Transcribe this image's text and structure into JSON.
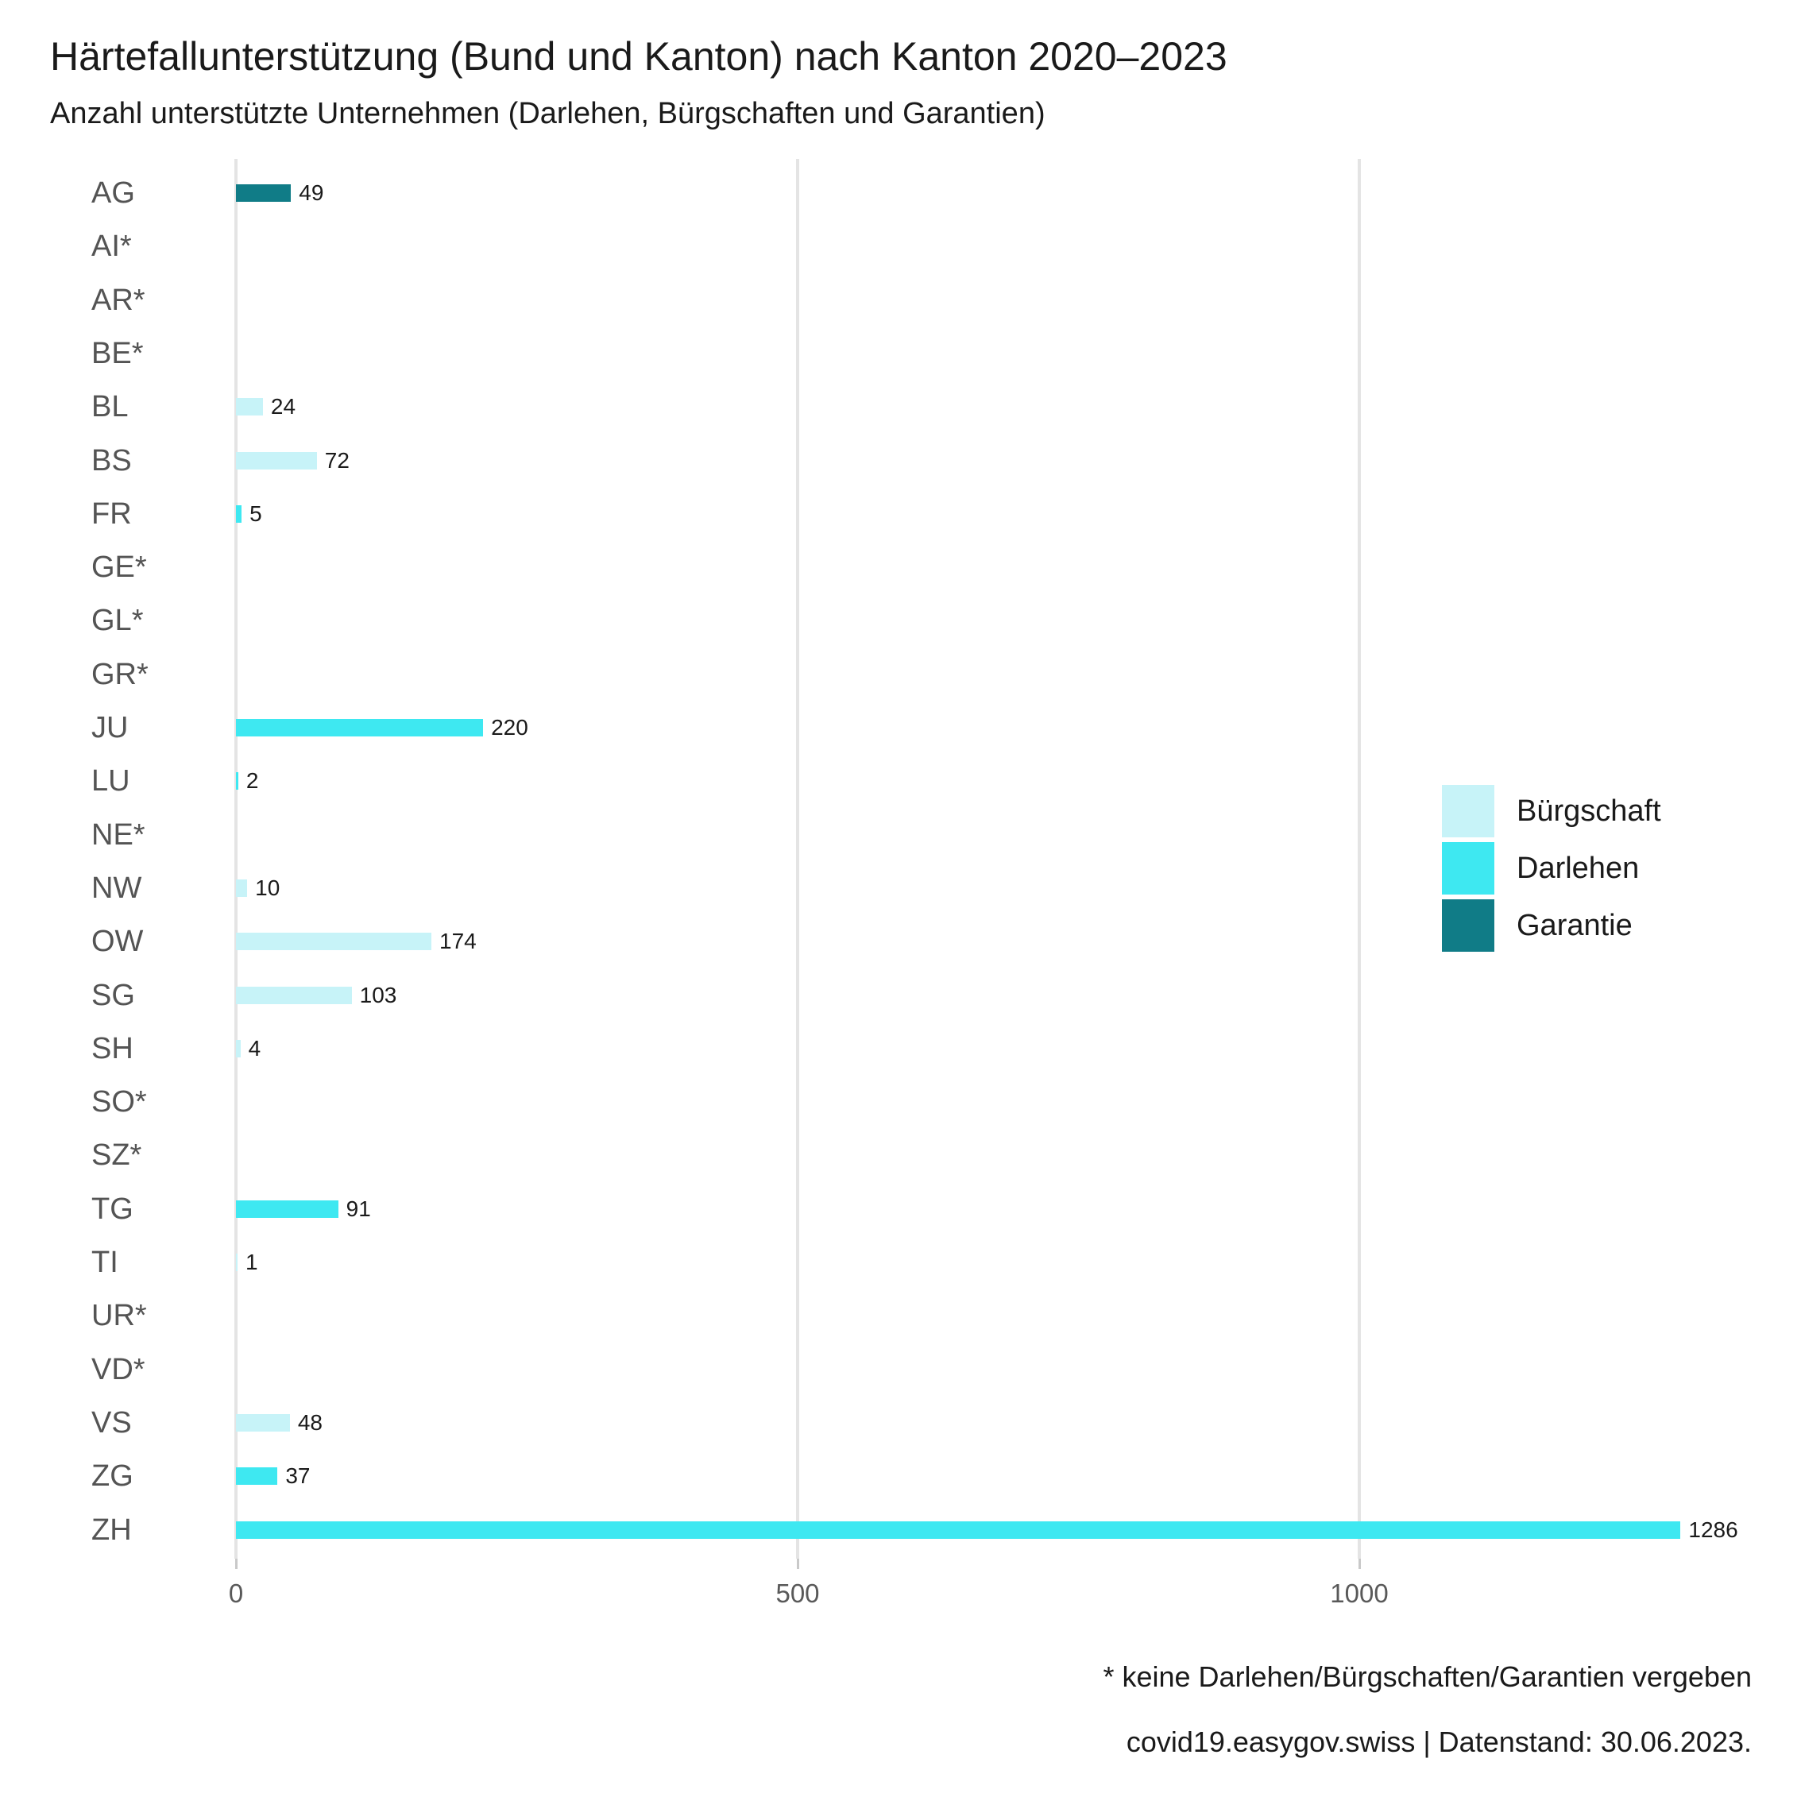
{
  "title": "Härtefallunterstützung (Bund und Kanton) nach Kanton 2020–2023",
  "subtitle": "Anzahl unterstützte Unternehmen (Darlehen, Bürgschaften und Garantien)",
  "footnote": "* keine Darlehen/Bürgschaften/Garantien vergeben",
  "source": "covid19.easygov.swiss | Datenstand: 30.06.2023.",
  "colors": {
    "buergschaft": "#C7F3F8",
    "darlehen": "#3EE8F1",
    "garantie": "#107C87",
    "gridline": "#e4e4e4",
    "axis_text": "#595959",
    "category_text": "#545454"
  },
  "legend": {
    "position": "right",
    "items": [
      {
        "label": "Bürgschaft",
        "color": "#C7F3F8"
      },
      {
        "label": "Darlehen",
        "color": "#3EE8F1"
      },
      {
        "label": "Garantie",
        "color": "#107C87"
      }
    ]
  },
  "chart_data": {
    "type": "bar",
    "orientation": "horizontal",
    "title": "Härtefallunterstützung (Bund und Kanton) nach Kanton 2020–2023",
    "subtitle": "Anzahl unterstützte Unternehmen (Darlehen, Bürgschaften und Garantien)",
    "xlabel": "",
    "ylabel": "",
    "x_ticks": [
      0,
      500,
      1000
    ],
    "xlim": [
      0,
      1350
    ],
    "grid": "vertical-only",
    "legend_position": "right",
    "series_colors": {
      "Bürgschaft": "#C7F3F8",
      "Darlehen": "#3EE8F1",
      "Garantie": "#107C87"
    },
    "rows": [
      {
        "canton": "AG",
        "value": 49,
        "series": "Garantie"
      },
      {
        "canton": "AI*",
        "value": null,
        "series": null
      },
      {
        "canton": "AR*",
        "value": null,
        "series": null
      },
      {
        "canton": "BE*",
        "value": null,
        "series": null
      },
      {
        "canton": "BL",
        "value": 24,
        "series": "Bürgschaft"
      },
      {
        "canton": "BS",
        "value": 72,
        "series": "Bürgschaft"
      },
      {
        "canton": "FR",
        "value": 5,
        "series": "Darlehen"
      },
      {
        "canton": "GE*",
        "value": null,
        "series": null
      },
      {
        "canton": "GL*",
        "value": null,
        "series": null
      },
      {
        "canton": "GR*",
        "value": null,
        "series": null
      },
      {
        "canton": "JU",
        "value": 220,
        "series": "Darlehen"
      },
      {
        "canton": "LU",
        "value": 2,
        "series": "Darlehen"
      },
      {
        "canton": "NE*",
        "value": null,
        "series": null
      },
      {
        "canton": "NW",
        "value": 10,
        "series": "Bürgschaft"
      },
      {
        "canton": "OW",
        "value": 174,
        "series": "Bürgschaft"
      },
      {
        "canton": "SG",
        "value": 103,
        "series": "Bürgschaft"
      },
      {
        "canton": "SH",
        "value": 4,
        "series": "Bürgschaft"
      },
      {
        "canton": "SO*",
        "value": null,
        "series": null
      },
      {
        "canton": "SZ*",
        "value": null,
        "series": null
      },
      {
        "canton": "TG",
        "value": 91,
        "series": "Darlehen"
      },
      {
        "canton": "TI",
        "value": 1,
        "series": "Bürgschaft"
      },
      {
        "canton": "UR*",
        "value": null,
        "series": null
      },
      {
        "canton": "VD*",
        "value": null,
        "series": null
      },
      {
        "canton": "VS",
        "value": 48,
        "series": "Bürgschaft"
      },
      {
        "canton": "ZG",
        "value": 37,
        "series": "Darlehen"
      },
      {
        "canton": "ZH",
        "value": 1286,
        "series": "Darlehen"
      }
    ]
  }
}
